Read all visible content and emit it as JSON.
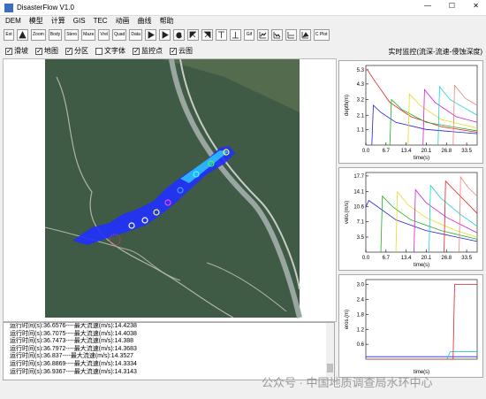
{
  "window": {
    "title": "DisasterFlow V1.0"
  },
  "menu": [
    "DEM",
    "模型",
    "计算",
    "GIS",
    "TEC",
    "动画",
    "曲线",
    "帮助"
  ],
  "toolbar": [
    "Ext",
    "Zoom",
    "Body",
    "Stero",
    "Maze",
    "Vrel",
    "Quad",
    "Data",
    "Gif",
    "C Plot"
  ],
  "checkboxes": [
    {
      "label": "滑坡",
      "checked": true
    },
    {
      "label": "地图",
      "checked": true
    },
    {
      "label": "分区",
      "checked": true
    },
    {
      "label": "文字体",
      "checked": false
    },
    {
      "label": "监控点",
      "checked": true
    },
    {
      "label": "云图",
      "checked": true
    }
  ],
  "monitor_title": "实时监控(流深-流速-侵蚀深度)",
  "chart_data": [
    {
      "type": "line",
      "y_label": "depth(m)",
      "x_label": "time(s)",
      "xlim": [
        0,
        37
      ],
      "ylim": [
        0,
        5.6
      ],
      "xticks": [
        {
          "value": 0,
          "label": "0.0"
        },
        6.7,
        13.4,
        20.1,
        26.8,
        33.5
      ],
      "yticks": [
        1.1,
        2.1,
        3.2,
        4.3,
        5.3
      ],
      "series": [
        {
          "color": "#e02020",
          "x": [
            0,
            0.5,
            3,
            8,
            15,
            25,
            37
          ],
          "values": [
            5.3,
            5.3,
            4.5,
            3.0,
            2.0,
            1.3,
            0.9
          ]
        },
        {
          "color": "#2020d0",
          "x": [
            2,
            2.5,
            5,
            10,
            20,
            37
          ],
          "values": [
            0,
            2.8,
            2.3,
            1.6,
            1.1,
            0.8
          ]
        },
        {
          "color": "#20b020",
          "x": [
            8,
            8.5,
            12,
            20,
            37
          ],
          "values": [
            0,
            3.2,
            2.5,
            1.6,
            1.0
          ]
        },
        {
          "color": "#e0e020",
          "x": [
            14,
            14.5,
            18,
            25,
            37
          ],
          "values": [
            0,
            3.6,
            2.8,
            1.8,
            1.2
          ]
        },
        {
          "color": "#d020d0",
          "x": [
            19,
            19.5,
            23,
            30,
            37
          ],
          "values": [
            0,
            3.9,
            3.0,
            2.0,
            1.6
          ]
        },
        {
          "color": "#20d0d0",
          "x": [
            24,
            24.5,
            28,
            37
          ],
          "values": [
            0,
            4.1,
            3.2,
            2.1
          ]
        },
        {
          "color": "#f08080",
          "x": [
            29,
            29.5,
            33,
            37
          ],
          "values": [
            0,
            4.2,
            3.3,
            2.8
          ]
        }
      ]
    },
    {
      "type": "line",
      "y_label": "velo.(m/s)",
      "x_label": "time(s)",
      "xlim": [
        0,
        37
      ],
      "ylim": [
        0,
        18.5
      ],
      "xticks": [
        {
          "value": 0,
          "label": "0.0"
        },
        6.7,
        13.4,
        20.1,
        26.8,
        33.5
      ],
      "yticks": [
        3.5,
        7.1,
        10.6,
        14.1,
        17.7
      ],
      "series": [
        {
          "color": "#2020d0",
          "x": [
            0,
            1,
            5,
            10,
            20,
            37
          ],
          "values": [
            10.5,
            12.0,
            10.0,
            7.5,
            5.0,
            2.5
          ]
        },
        {
          "color": "#20b020",
          "x": [
            5,
            5.5,
            9,
            15,
            25,
            37
          ],
          "values": [
            0,
            13.0,
            10.5,
            7.5,
            5.0,
            3.0
          ]
        },
        {
          "color": "#e0e020",
          "x": [
            10,
            10.5,
            14,
            20,
            30,
            37
          ],
          "values": [
            0,
            14.0,
            11.0,
            8.0,
            5.0,
            3.5
          ]
        },
        {
          "color": "#d020d0",
          "x": [
            16,
            16.5,
            20,
            27,
            37
          ],
          "values": [
            0,
            14.5,
            11.5,
            8.0,
            4.5
          ]
        },
        {
          "color": "#20d0d0",
          "x": [
            21,
            21.5,
            25,
            31,
            37
          ],
          "values": [
            0,
            15.5,
            12.5,
            9.0,
            6.0
          ]
        },
        {
          "color": "#e02020",
          "x": [
            26,
            26.5,
            30,
            37
          ],
          "values": [
            0,
            16.5,
            14.0,
            9.0
          ]
        },
        {
          "color": "#f08080",
          "x": [
            31,
            31.5,
            34,
            37
          ],
          "values": [
            0,
            17.5,
            15.0,
            13.0
          ]
        }
      ]
    },
    {
      "type": "line",
      "y_label": "eros.(m)",
      "x_label": "time(s)",
      "xlim": [
        0,
        37
      ],
      "ylim": [
        0,
        3.2
      ],
      "yticks": [
        0.6,
        1.2,
        1.8,
        2.4,
        {
          "value": 3.0,
          "label": "3.0"
        }
      ],
      "series": [
        {
          "color": "#2020d0",
          "x": [
            0,
            37
          ],
          "values": [
            0.1,
            0.1
          ]
        },
        {
          "color": "#20d0d0",
          "x": [
            0,
            27,
            28,
            37
          ],
          "values": [
            0,
            0,
            0.3,
            0.3
          ]
        },
        {
          "color": "#e02020",
          "x": [
            0,
            29,
            29.5,
            37
          ],
          "values": [
            0,
            0,
            3.0,
            3.0
          ]
        }
      ]
    }
  ],
  "log": [
    "运行时间(s):36.6576----最大流速(m/s):14.4238",
    "运行时间(s):36.7075----最大流速(m/s):14.4038",
    "运行时间(s):36.7473----最大流速(m/s):14.388",
    "运行时间(s):36.7972----最大流速(m/s):14.3683",
    "运行时间(s):36.837----最大流速(m/s):14.3527",
    "运行时间(s):36.8869----最大流速(m/s):14.3334",
    "运行时间(s):36.9367----最大流速(m/s):14.3143"
  ],
  "watermark": "公众号 · 中国地质调查局水环中心"
}
